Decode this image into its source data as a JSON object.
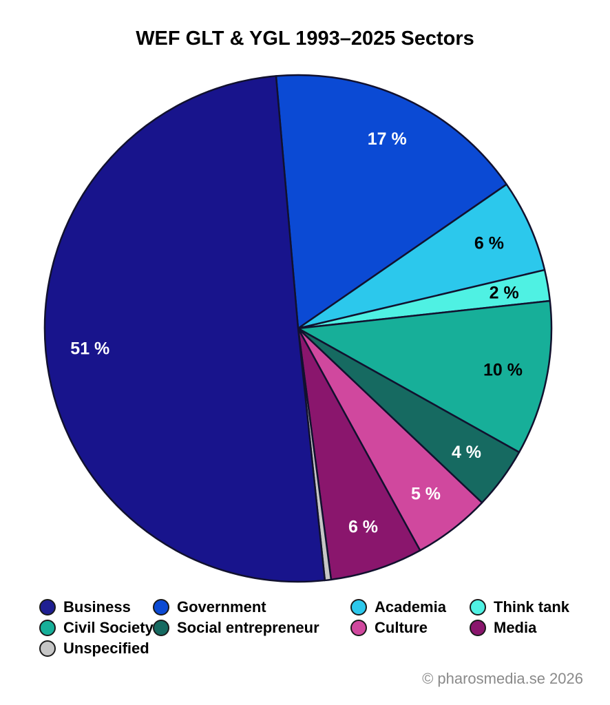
{
  "title": "WEF GLT & YGL 1993–2025 Sectors",
  "footer": "© pharosmedia.se 2026",
  "chart_data": {
    "type": "pie",
    "title": "WEF GLT & YGL 1993–2025 Sectors",
    "start_angle_deg": 95,
    "direction": "clockwise",
    "label_radius_fraction": 0.825,
    "stroke_color": "#11112E",
    "stroke_width": 2.5,
    "slices": [
      {
        "name": "Government",
        "value": 17,
        "label": "17 %",
        "color": "#0B4AD4",
        "label_color": "#ffffff"
      },
      {
        "name": "Academia",
        "value": 6,
        "label": "6 %",
        "color": "#2CC8EC",
        "label_color": "#000000"
      },
      {
        "name": "Think tank",
        "value": 2,
        "label": "2 %",
        "color": "#4FF1E3",
        "label_color": "#000000"
      },
      {
        "name": "Civil Society",
        "value": 10,
        "label": "10 %",
        "color": "#17AF99",
        "label_color": "#000000"
      },
      {
        "name": "Social entrepreneur",
        "value": 4,
        "label": "4 %",
        "color": "#166A61",
        "label_color": "#ffffff"
      },
      {
        "name": "Culture",
        "value": 5,
        "label": "5 %",
        "color": "#D0489E",
        "label_color": "#ffffff"
      },
      {
        "name": "Media",
        "value": 6,
        "label": "6 %",
        "color": "#8A166D",
        "label_color": "#ffffff"
      },
      {
        "name": "Unspecified",
        "value": 0.4,
        "label": "",
        "color": "#C6C6C6",
        "label_color": "#000000"
      },
      {
        "name": "Business",
        "value": 51,
        "label": "51 %",
        "color": "#18148C",
        "label_color": "#ffffff"
      }
    ],
    "legend": [
      {
        "name": "Business",
        "color": "#1F1F92"
      },
      {
        "name": "Government",
        "color": "#0B4AD4"
      },
      {
        "name": "Academia",
        "color": "#2CC8EC"
      },
      {
        "name": "Think tank",
        "color": "#4FF1E3"
      },
      {
        "name": "Civil Society",
        "color": "#17AF99"
      },
      {
        "name": "Social entrepreneur",
        "color": "#166A61"
      },
      {
        "name": "Culture",
        "color": "#D0489E"
      },
      {
        "name": "Media",
        "color": "#8A166D"
      },
      {
        "name": "Unspecified",
        "color": "#C6C6C6"
      }
    ]
  }
}
